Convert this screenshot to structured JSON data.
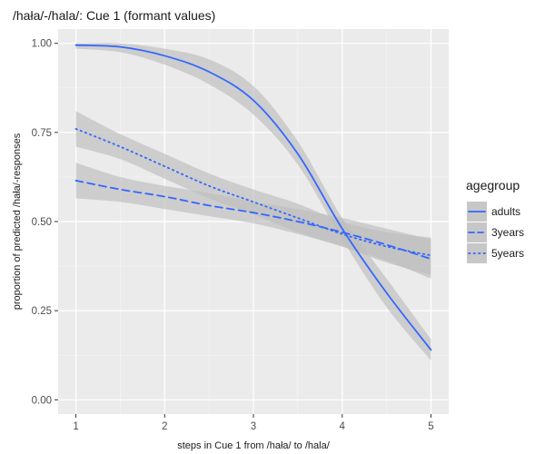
{
  "chart_data": {
    "type": "line",
    "title": "/hała/-/hala/: Cue 1 (formant values)",
    "xlabel": "steps in Cue 1 from /hała/ to /hala/",
    "ylabel": "proportion of predicted /hała/-responses",
    "xlim": [
      0.8,
      5.2
    ],
    "ylim": [
      -0.04,
      1.04
    ],
    "x_ticks": [
      1,
      2,
      3,
      4,
      5
    ],
    "y_ticks": [
      0.0,
      0.25,
      0.5,
      0.75,
      1.0
    ],
    "x_tick_labels": [
      "1",
      "2",
      "3",
      "4",
      "5"
    ],
    "y_tick_labels": [
      "0.00",
      "0.25",
      "0.50",
      "0.75",
      "1.00"
    ],
    "grid": true,
    "panel_background": "#ebebeb",
    "line_color": "#3366ff",
    "ribbon_color": "#bdbdbd",
    "legend": {
      "title": "agegroup",
      "position": "right"
    },
    "x": [
      1,
      1.5,
      2,
      2.5,
      3,
      3.5,
      4,
      4.5,
      5
    ],
    "series": [
      {
        "name": "adults",
        "linestyle": "solid",
        "values": [
          0.995,
          0.99,
          0.965,
          0.92,
          0.84,
          0.69,
          0.48,
          0.3,
          0.14
        ],
        "lower": [
          0.985,
          0.975,
          0.94,
          0.885,
          0.8,
          0.66,
          0.45,
          0.26,
          0.11
        ],
        "upper": [
          1.0,
          1.0,
          0.985,
          0.955,
          0.88,
          0.725,
          0.51,
          0.34,
          0.17
        ]
      },
      {
        "name": "3years",
        "linestyle": "dashed",
        "values": [
          0.615,
          0.59,
          0.57,
          0.545,
          0.525,
          0.5,
          0.47,
          0.435,
          0.395
        ],
        "lower": [
          0.565,
          0.555,
          0.535,
          0.515,
          0.495,
          0.465,
          0.43,
          0.39,
          0.34
        ],
        "upper": [
          0.665,
          0.625,
          0.6,
          0.58,
          0.555,
          0.535,
          0.51,
          0.48,
          0.45
        ]
      },
      {
        "name": "5years",
        "linestyle": "dotted",
        "values": [
          0.76,
          0.71,
          0.655,
          0.6,
          0.555,
          0.51,
          0.465,
          0.43,
          0.405
        ],
        "lower": [
          0.71,
          0.675,
          0.62,
          0.565,
          0.52,
          0.47,
          0.43,
          0.385,
          0.35
        ],
        "upper": [
          0.81,
          0.745,
          0.69,
          0.635,
          0.59,
          0.55,
          0.5,
          0.47,
          0.455
        ]
      }
    ]
  }
}
